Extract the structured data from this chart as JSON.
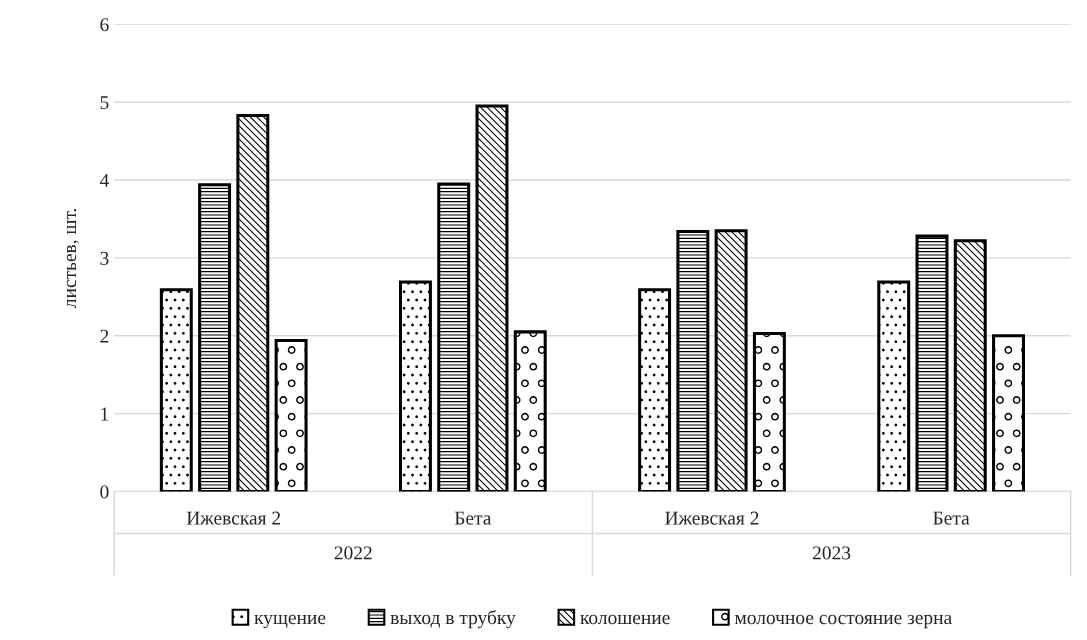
{
  "chart_data": {
    "type": "bar",
    "ylabel": "листьев, шт.",
    "categories": [
      "Ижевская 2",
      "Бета",
      "Ижевская 2",
      "Бета"
    ],
    "annotations": [
      "2022",
      "2023"
    ],
    "series": [
      {
        "name": "кущение",
        "color": "#000000",
        "values": [
          2.59,
          2.69,
          2.59,
          2.69
        ]
      },
      {
        "name": "выход в трубку",
        "color": "#000000",
        "values": [
          3.94,
          3.95,
          3.34,
          3.28
        ]
      },
      {
        "name": "колошение",
        "color": "#000000",
        "values": [
          4.83,
          4.95,
          3.35,
          3.22
        ]
      },
      {
        "name": "молочное состояние зерна",
        "color": "#000000",
        "values": [
          1.94,
          2.05,
          2.03,
          2.0
        ]
      }
    ],
    "ylim": [
      0,
      6
    ],
    "yticks": [
      0,
      1,
      2,
      3,
      4,
      5,
      6
    ],
    "grid": "y",
    "legend": "bottom"
  }
}
